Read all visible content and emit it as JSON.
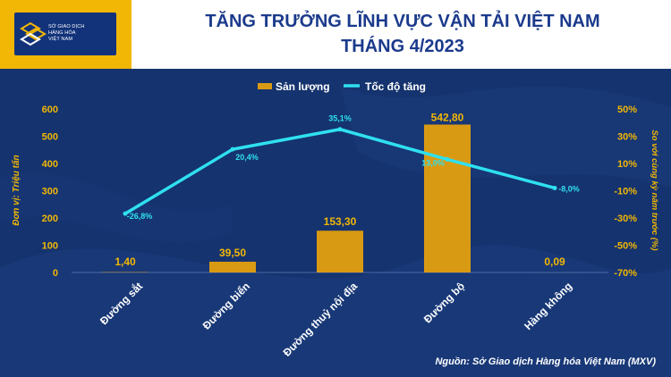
{
  "header": {
    "logo_lines": [
      "SỞ GIAO DỊCH",
      "HÀNG HÓA",
      "VIỆT NAM"
    ],
    "title_line1": "TĂNG TRƯỞNG LĨNH VỰC VẬN TẢI VIỆT NAM",
    "title_line2": "THÁNG 4/2023"
  },
  "source": "Nguồn: Sở Giao dịch Hàng hóa Việt Nam (MXV)",
  "colors": {
    "bar": "#d99a13",
    "line": "#2fe0f0",
    "axis_text": "#f2b705",
    "background": "#15336e",
    "title": "#1b3a8c"
  },
  "chart_data": {
    "type": "bar",
    "categories": [
      "Đường sắt",
      "Đường biển",
      "Đường thuỷ nội địa",
      "Đường bộ",
      "Hàng không"
    ],
    "series": [
      {
        "name": "Sản lượng",
        "type": "bar",
        "axis": "left",
        "values": [
          1.4,
          39.5,
          153.3,
          542.8,
          0.09
        ],
        "labels": [
          "1,40",
          "39,50",
          "153,30",
          "542,80",
          "0,09"
        ]
      },
      {
        "name": "Tốc độ tăng",
        "type": "line",
        "axis": "right",
        "values": [
          -26.8,
          20.4,
          35.1,
          13.0,
          -8.0
        ],
        "labels": [
          "-26,8%",
          "20,4%",
          "35,1%",
          "13,0%",
          "-8,0%"
        ]
      }
    ],
    "ylabel": "Đơn vị: Triệu tấn",
    "y2label": "So với cùng kỳ năm trước (%)",
    "ylim": [
      0,
      600
    ],
    "y_ticks": [
      "0",
      "100",
      "200",
      "300",
      "400",
      "500",
      "600"
    ],
    "y2lim": [
      -70,
      50
    ],
    "y2_ticks": [
      "-70%",
      "-50%",
      "-30%",
      "-10%",
      "10%",
      "30%",
      "50%"
    ],
    "legend_position": "top-center",
    "grid": false
  }
}
